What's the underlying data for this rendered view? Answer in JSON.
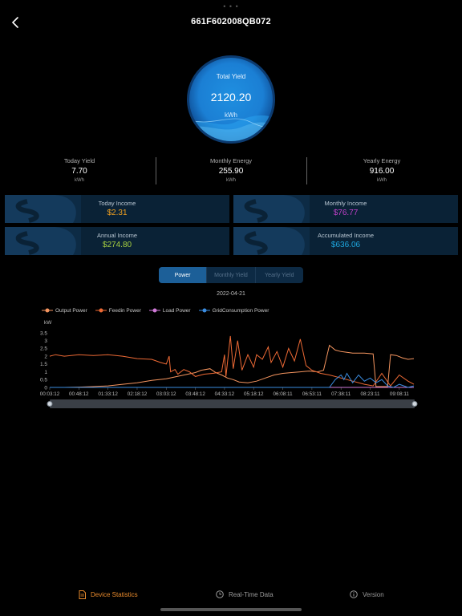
{
  "header": {
    "title": "661F602008QB072"
  },
  "total_yield": {
    "label": "Total Yield",
    "value": "2120.20",
    "unit": "kWh"
  },
  "stats": [
    {
      "label": "Today Yield",
      "value": "7.70",
      "unit": "kWh"
    },
    {
      "label": "Monthly Energy",
      "value": "255.90",
      "unit": "kWh"
    },
    {
      "label": "Yearly Energy",
      "value": "916.00",
      "unit": "kWh"
    }
  ],
  "income": [
    {
      "label": "Today Income",
      "value": "$2.31",
      "color": "#f0a020"
    },
    {
      "label": "Monthly Income",
      "value": "$76.77",
      "color": "#c040c8"
    },
    {
      "label": "Annual Income",
      "value": "$274.80",
      "color": "#a8d040"
    },
    {
      "label": "Accumulated Income",
      "value": "$636.06",
      "color": "#1ea8e0"
    }
  ],
  "tabs": {
    "power": "Power",
    "monthly": "Monthly Yield",
    "yearly": "Yearly Yield"
  },
  "chart_date": "2022-04-21",
  "chart_data": {
    "type": "line",
    "xlabel": "",
    "ylabel": "kW",
    "ylim": [
      0,
      3.5
    ],
    "yticks": [
      0,
      0.5,
      1,
      1.5,
      2,
      2.5,
      3,
      3.5
    ],
    "x_tick_labels": [
      "00:03:12",
      "00:48:12",
      "01:33:12",
      "02:18:12",
      "03:03:12",
      "03:48:12",
      "04:33:12",
      "05:18:12",
      "06:08:11",
      "06:53:11",
      "07:38:11",
      "08:23:11",
      "09:08:11"
    ],
    "grid": false,
    "legend_position": "top-left",
    "series": [
      {
        "name": "Output Power",
        "color": "#f5955f",
        "points": [
          [
            0,
            0
          ],
          [
            0.5,
            0
          ],
          [
            1,
            0.02
          ],
          [
            1.5,
            0.05
          ],
          [
            2,
            0.1
          ],
          [
            2.5,
            0.2
          ],
          [
            3,
            0.3
          ],
          [
            3.5,
            0.45
          ],
          [
            4,
            0.55
          ],
          [
            4.5,
            0.75
          ],
          [
            5,
            0.95
          ],
          [
            5.2,
            1.1
          ],
          [
            5.5,
            1.2
          ],
          [
            5.7,
            0.95
          ],
          [
            5.9,
            0.8
          ],
          [
            6.1,
            0.6
          ],
          [
            6.3,
            0.5
          ],
          [
            6.5,
            0.35
          ],
          [
            6.8,
            0.3
          ],
          [
            7.1,
            0.4
          ],
          [
            7.4,
            0.6
          ],
          [
            7.7,
            0.8
          ],
          [
            8,
            0.9
          ],
          [
            8.3,
            0.95
          ],
          [
            8.6,
            1.0
          ],
          [
            8.9,
            1.05
          ],
          [
            9.2,
            1.0
          ],
          [
            9.4,
            1.1
          ],
          [
            9.6,
            2.7
          ],
          [
            9.8,
            2.4
          ],
          [
            10,
            2.3
          ],
          [
            10.4,
            2.2
          ],
          [
            10.8,
            2.2
          ],
          [
            11.1,
            2.15
          ],
          [
            11.2,
            0.05
          ],
          [
            11.6,
            0.05
          ],
          [
            11.7,
            2.1
          ],
          [
            11.9,
            2.05
          ],
          [
            12.1,
            1.9
          ],
          [
            12.3,
            1.8
          ],
          [
            12.5,
            1.85
          ]
        ]
      },
      {
        "name": "Feedin Power",
        "color": "#ee6a35",
        "points": [
          [
            0,
            2.0
          ],
          [
            0.2,
            2.1
          ],
          [
            0.5,
            2.0
          ],
          [
            1,
            2.1
          ],
          [
            1.5,
            2.05
          ],
          [
            2,
            2.1
          ],
          [
            2.5,
            2.0
          ],
          [
            3,
            1.85
          ],
          [
            3.5,
            1.8
          ],
          [
            3.8,
            1.6
          ],
          [
            4,
            1.5
          ],
          [
            4.1,
            2.0
          ],
          [
            4.15,
            1.0
          ],
          [
            4.3,
            1.15
          ],
          [
            4.4,
            0.85
          ],
          [
            4.6,
            1.15
          ],
          [
            4.8,
            1.0
          ],
          [
            5,
            0.7
          ],
          [
            5.3,
            0.85
          ],
          [
            5.6,
            0.9
          ],
          [
            5.9,
            1.0
          ],
          [
            6.0,
            2.1
          ],
          [
            6.05,
            0.7
          ],
          [
            6.2,
            3.3
          ],
          [
            6.3,
            1.2
          ],
          [
            6.45,
            3.0
          ],
          [
            6.6,
            1.1
          ],
          [
            6.8,
            2.1
          ],
          [
            7,
            1.3
          ],
          [
            7.1,
            2.1
          ],
          [
            7.3,
            1.8
          ],
          [
            7.5,
            2.6
          ],
          [
            7.6,
            1.6
          ],
          [
            7.8,
            2.3
          ],
          [
            8,
            1.3
          ],
          [
            8.2,
            2.5
          ],
          [
            8.4,
            1.7
          ],
          [
            8.6,
            3.1
          ],
          [
            8.8,
            1.4
          ],
          [
            9.0,
            1.1
          ],
          [
            9.3,
            0.9
          ],
          [
            9.6,
            0.8
          ],
          [
            10,
            0.6
          ],
          [
            10.4,
            0.4
          ],
          [
            10.8,
            0.2
          ],
          [
            11.1,
            0.1
          ],
          [
            11.4,
            0.9
          ],
          [
            11.7,
            0.1
          ],
          [
            12,
            0.8
          ],
          [
            12.3,
            0.4
          ],
          [
            12.5,
            0.2
          ]
        ]
      },
      {
        "name": "Load Power",
        "color": "#d07ad8",
        "points": [
          [
            0,
            0
          ],
          [
            12.5,
            0
          ]
        ]
      },
      {
        "name": "GridConsumption Power",
        "color": "#3a8ce0",
        "points": [
          [
            0,
            0
          ],
          [
            9.6,
            0
          ],
          [
            9.8,
            0.5
          ],
          [
            10,
            0.8
          ],
          [
            10.1,
            0.5
          ],
          [
            10.2,
            0.9
          ],
          [
            10.4,
            0.3
          ],
          [
            10.6,
            0.8
          ],
          [
            10.8,
            0.4
          ],
          [
            11.0,
            0.6
          ],
          [
            11.2,
            0.3
          ],
          [
            11.4,
            0.5
          ],
          [
            11.6,
            0.1
          ],
          [
            11.8,
            0.0
          ],
          [
            12.0,
            0.2
          ],
          [
            12.3,
            0.0
          ],
          [
            12.5,
            0.1
          ]
        ]
      }
    ]
  },
  "tabbar": {
    "statistics": {
      "label": "Device Statistics",
      "color": "#e88a2c"
    },
    "realtime": {
      "label": "Real-Time Data",
      "color": "#9a9a9a"
    },
    "version": {
      "label": "Version",
      "color": "#9a9a9a"
    }
  }
}
